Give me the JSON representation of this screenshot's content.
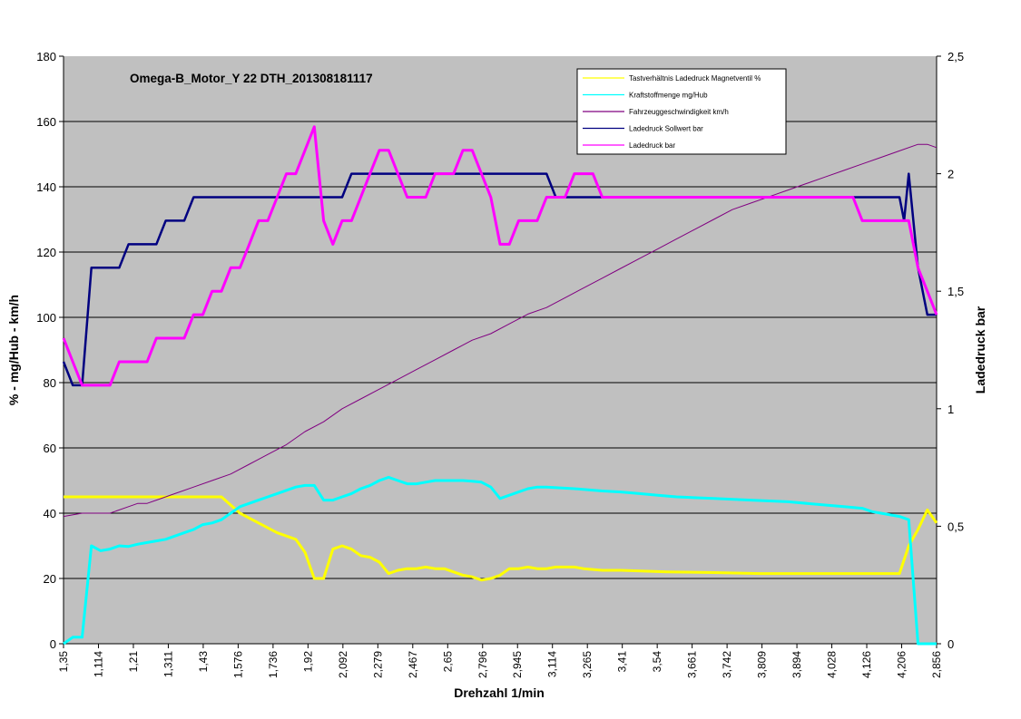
{
  "chart_data": {
    "type": "line",
    "title": "Omega-B_Motor_Y 22 DTH_201308181117",
    "xlabel": "Drehzahl 1/min",
    "ylabel": "% - mg/Hub - km/h",
    "y2label": "Ladedruck bar",
    "ylim": [
      0,
      180
    ],
    "y2lim": [
      0,
      2.5
    ],
    "y_ticks": [
      "0",
      "20",
      "40",
      "60",
      "80",
      "100",
      "120",
      "140",
      "160",
      "180"
    ],
    "y2_ticks": [
      "0",
      "0,5",
      "1",
      "1,5",
      "2",
      "2,5"
    ],
    "x_tick_labels": [
      "1,35",
      "1,114",
      "1,21",
      "1,311",
      "1,43",
      "1,576",
      "1,736",
      "1,92",
      "2,092",
      "2,279",
      "2,467",
      "2,65",
      "2,796",
      "2,945",
      "3,114",
      "3,265",
      "3,41",
      "3,54",
      "3,661",
      "3,742",
      "3,809",
      "3,894",
      "4,028",
      "4,126",
      "4,206",
      "2,856"
    ],
    "x_range": [
      0,
      94
    ],
    "plot_background": "#c0c0c0",
    "grid": true,
    "legend_position": "top-right",
    "series": [
      {
        "name": "Tastverhältnis Ladedruck Magnetventil %",
        "color": "#ffff00",
        "axis": "left",
        "points": [
          [
            0,
            45
          ],
          [
            17,
            45
          ],
          [
            19,
            40
          ],
          [
            21,
            37
          ],
          [
            23,
            34
          ],
          [
            24,
            33
          ],
          [
            25,
            32
          ],
          [
            26,
            28
          ],
          [
            27,
            20
          ],
          [
            28,
            20
          ],
          [
            29,
            29
          ],
          [
            30,
            30
          ],
          [
            31,
            29
          ],
          [
            32,
            27
          ],
          [
            33,
            26.5
          ],
          [
            34,
            25
          ],
          [
            35,
            21.5
          ],
          [
            36,
            22.5
          ],
          [
            37,
            23
          ],
          [
            38,
            23
          ],
          [
            39,
            23.5
          ],
          [
            40,
            23
          ],
          [
            41,
            23
          ],
          [
            42,
            22
          ],
          [
            43,
            21
          ],
          [
            44,
            20.5
          ],
          [
            45,
            19.5
          ],
          [
            46,
            20
          ],
          [
            47,
            21
          ],
          [
            48,
            23
          ],
          [
            49,
            23
          ],
          [
            50,
            23.5
          ],
          [
            51,
            23
          ],
          [
            52,
            23
          ],
          [
            53,
            23.5
          ],
          [
            55,
            23.5
          ],
          [
            56,
            23
          ],
          [
            58,
            22.5
          ],
          [
            60,
            22.5
          ],
          [
            65,
            22
          ],
          [
            70,
            21.8
          ],
          [
            75,
            21.5
          ],
          [
            80,
            21.5
          ],
          [
            85,
            21.5
          ],
          [
            90,
            21.5
          ],
          [
            91,
            30
          ],
          [
            92,
            35
          ],
          [
            93,
            41
          ],
          [
            94,
            37
          ]
        ]
      },
      {
        "name": "Kraftstoffmenge mg/Hub",
        "color": "#00ffff",
        "axis": "left",
        "points": [
          [
            0,
            0
          ],
          [
            1,
            2
          ],
          [
            2,
            2
          ],
          [
            3,
            30
          ],
          [
            4,
            28.5
          ],
          [
            5,
            29
          ],
          [
            6,
            30
          ],
          [
            7,
            29.8
          ],
          [
            8,
            30.5
          ],
          [
            9,
            31
          ],
          [
            10,
            31.5
          ],
          [
            11,
            32
          ],
          [
            12,
            33
          ],
          [
            13,
            34
          ],
          [
            14,
            35
          ],
          [
            15,
            36.5
          ],
          [
            16,
            37
          ],
          [
            17,
            38
          ],
          [
            18,
            40
          ],
          [
            19,
            42
          ],
          [
            20,
            43
          ],
          [
            21,
            44
          ],
          [
            22,
            45
          ],
          [
            23,
            46
          ],
          [
            24,
            47
          ],
          [
            25,
            48
          ],
          [
            26,
            48.5
          ],
          [
            27,
            48.5
          ],
          [
            28,
            44
          ],
          [
            29,
            44
          ],
          [
            30,
            45
          ],
          [
            31,
            46
          ],
          [
            32,
            47.5
          ],
          [
            33,
            48.5
          ],
          [
            34,
            50
          ],
          [
            35,
            51
          ],
          [
            36,
            50
          ],
          [
            37,
            49
          ],
          [
            38,
            49
          ],
          [
            39,
            49.5
          ],
          [
            40,
            50
          ],
          [
            41,
            50
          ],
          [
            42,
            50
          ],
          [
            43,
            50
          ],
          [
            44,
            49.8
          ],
          [
            45,
            49.5
          ],
          [
            46,
            48
          ],
          [
            47,
            44.5
          ],
          [
            48,
            45.5
          ],
          [
            49,
            46.5
          ],
          [
            50,
            47.5
          ],
          [
            51,
            48
          ],
          [
            52,
            48
          ],
          [
            55,
            47.5
          ],
          [
            58,
            46.8
          ],
          [
            60,
            46.5
          ],
          [
            62,
            46
          ],
          [
            64,
            45.5
          ],
          [
            66,
            45
          ],
          [
            70,
            44.5
          ],
          [
            74,
            44
          ],
          [
            78,
            43.5
          ],
          [
            82,
            42.5
          ],
          [
            84,
            42
          ],
          [
            86,
            41.5
          ],
          [
            87,
            40.5
          ],
          [
            88,
            40
          ],
          [
            90,
            39
          ],
          [
            91,
            38
          ],
          [
            92,
            0
          ],
          [
            94,
            0
          ]
        ]
      },
      {
        "name": "Fahrzeuggeschwindigkeit km/h",
        "color": "#800080",
        "axis": "left",
        "points": [
          [
            0,
            39
          ],
          [
            2,
            40
          ],
          [
            4,
            40
          ],
          [
            5,
            40
          ],
          [
            7,
            42
          ],
          [
            8,
            43
          ],
          [
            9,
            43
          ],
          [
            10,
            44
          ],
          [
            12,
            46
          ],
          [
            14,
            48
          ],
          [
            16,
            50
          ],
          [
            18,
            52
          ],
          [
            20,
            55
          ],
          [
            22,
            58
          ],
          [
            24,
            61
          ],
          [
            26,
            65
          ],
          [
            28,
            68
          ],
          [
            30,
            72
          ],
          [
            32,
            75
          ],
          [
            34,
            78
          ],
          [
            36,
            81
          ],
          [
            38,
            84
          ],
          [
            40,
            87
          ],
          [
            42,
            90
          ],
          [
            44,
            93
          ],
          [
            46,
            95
          ],
          [
            48,
            98
          ],
          [
            50,
            101
          ],
          [
            52,
            103
          ],
          [
            54,
            106
          ],
          [
            56,
            109
          ],
          [
            58,
            112
          ],
          [
            60,
            115
          ],
          [
            62,
            118
          ],
          [
            64,
            121
          ],
          [
            66,
            124
          ],
          [
            68,
            127
          ],
          [
            70,
            130
          ],
          [
            72,
            133
          ],
          [
            74,
            135
          ],
          [
            76,
            137
          ],
          [
            78,
            139
          ],
          [
            80,
            141
          ],
          [
            82,
            143
          ],
          [
            84,
            145
          ],
          [
            86,
            147
          ],
          [
            88,
            149
          ],
          [
            90,
            151
          ],
          [
            92,
            153
          ],
          [
            93,
            153
          ],
          [
            94,
            152
          ]
        ]
      },
      {
        "name": "Ladedruck Sollwert bar",
        "color": "#000080",
        "axis": "right",
        "points": [
          [
            0,
            1.2
          ],
          [
            1,
            1.1
          ],
          [
            2,
            1.1
          ],
          [
            3,
            1.6
          ],
          [
            6,
            1.6
          ],
          [
            7,
            1.7
          ],
          [
            10,
            1.7
          ],
          [
            11,
            1.8
          ],
          [
            13,
            1.8
          ],
          [
            14,
            1.9
          ],
          [
            30,
            1.9
          ],
          [
            31,
            2
          ],
          [
            52,
            2
          ],
          [
            53,
            1.9
          ],
          [
            90,
            1.9
          ],
          [
            90.5,
            1.8
          ],
          [
            91,
            2
          ],
          [
            92,
            1.6
          ],
          [
            93,
            1.4
          ],
          [
            94,
            1.4
          ]
        ]
      },
      {
        "name": "Ladedruck bar",
        "color": "#ff00ff",
        "axis": "right",
        "points": [
          [
            0,
            1.3
          ],
          [
            1,
            1.2
          ],
          [
            2,
            1.1
          ],
          [
            5,
            1.1
          ],
          [
            6,
            1.2
          ],
          [
            9,
            1.2
          ],
          [
            10,
            1.3
          ],
          [
            13,
            1.3
          ],
          [
            14,
            1.4
          ],
          [
            15,
            1.4
          ],
          [
            16,
            1.5
          ],
          [
            17,
            1.5
          ],
          [
            18,
            1.6
          ],
          [
            19,
            1.6
          ],
          [
            20,
            1.7
          ],
          [
            21,
            1.8
          ],
          [
            22,
            1.8
          ],
          [
            23,
            1.9
          ],
          [
            24,
            2
          ],
          [
            25,
            2
          ],
          [
            26,
            2.1
          ],
          [
            27,
            2.2
          ],
          [
            28,
            1.8
          ],
          [
            29,
            1.7
          ],
          [
            30,
            1.8
          ],
          [
            31,
            1.8
          ],
          [
            32,
            1.9
          ],
          [
            33,
            2
          ],
          [
            34,
            2.1
          ],
          [
            35,
            2.1
          ],
          [
            36,
            2
          ],
          [
            37,
            1.9
          ],
          [
            39,
            1.9
          ],
          [
            40,
            2
          ],
          [
            42,
            2
          ],
          [
            43,
            2.1
          ],
          [
            44,
            2.1
          ],
          [
            45,
            2
          ],
          [
            46,
            1.9
          ],
          [
            47,
            1.7
          ],
          [
            48,
            1.7
          ],
          [
            49,
            1.8
          ],
          [
            51,
            1.8
          ],
          [
            52,
            1.9
          ],
          [
            54,
            1.9
          ],
          [
            55,
            2
          ],
          [
            57,
            2
          ],
          [
            58,
            1.9
          ],
          [
            85,
            1.9
          ],
          [
            86,
            1.8
          ],
          [
            91,
            1.8
          ],
          [
            92,
            1.6
          ],
          [
            93,
            1.5
          ],
          [
            94,
            1.4
          ]
        ]
      }
    ]
  }
}
